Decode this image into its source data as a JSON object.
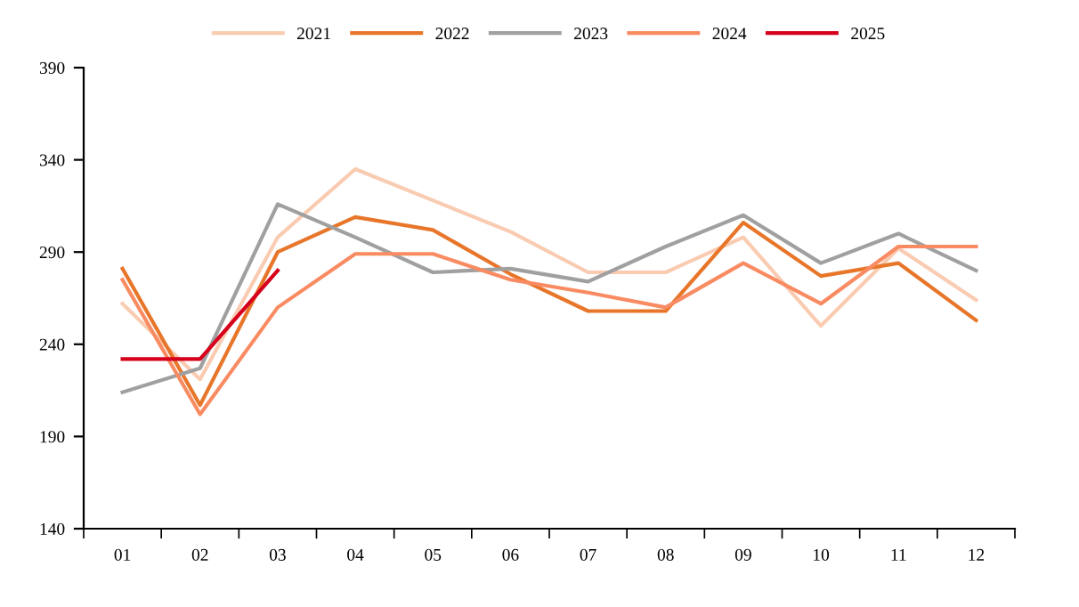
{
  "chart_data": {
    "type": "line",
    "categories": [
      "01",
      "02",
      "03",
      "04",
      "05",
      "06",
      "07",
      "08",
      "09",
      "10",
      "11",
      "12"
    ],
    "series": [
      {
        "name": "2021",
        "color": "#f9cbb1",
        "values": [
          262,
          221,
          298,
          335,
          318,
          301,
          279,
          279,
          298,
          250,
          292,
          264
        ]
      },
      {
        "name": "2022",
        "color": "#e8762a",
        "values": [
          281,
          207,
          290,
          309,
          302,
          278,
          258,
          258,
          306,
          277,
          284,
          253
        ]
      },
      {
        "name": "2023",
        "color": "#a0a0a0",
        "values": [
          214,
          227,
          316,
          298,
          279,
          281,
          274,
          293,
          310,
          284,
          300,
          280
        ]
      },
      {
        "name": "2024",
        "color": "#f98b62",
        "values": [
          275,
          202,
          260,
          289,
          289,
          275,
          268,
          260,
          284,
          262,
          293,
          293
        ]
      },
      {
        "name": "2025",
        "color": "#d6001c",
        "values": [
          232,
          232,
          280,
          null,
          null,
          null,
          null,
          null,
          null,
          null,
          null,
          null
        ]
      }
    ],
    "ylim": [
      140,
      390
    ],
    "yticks": [
      140,
      190,
      240,
      290,
      340,
      390
    ],
    "grid": false,
    "legend": "top",
    "marker": "none",
    "line_style": "solid"
  }
}
